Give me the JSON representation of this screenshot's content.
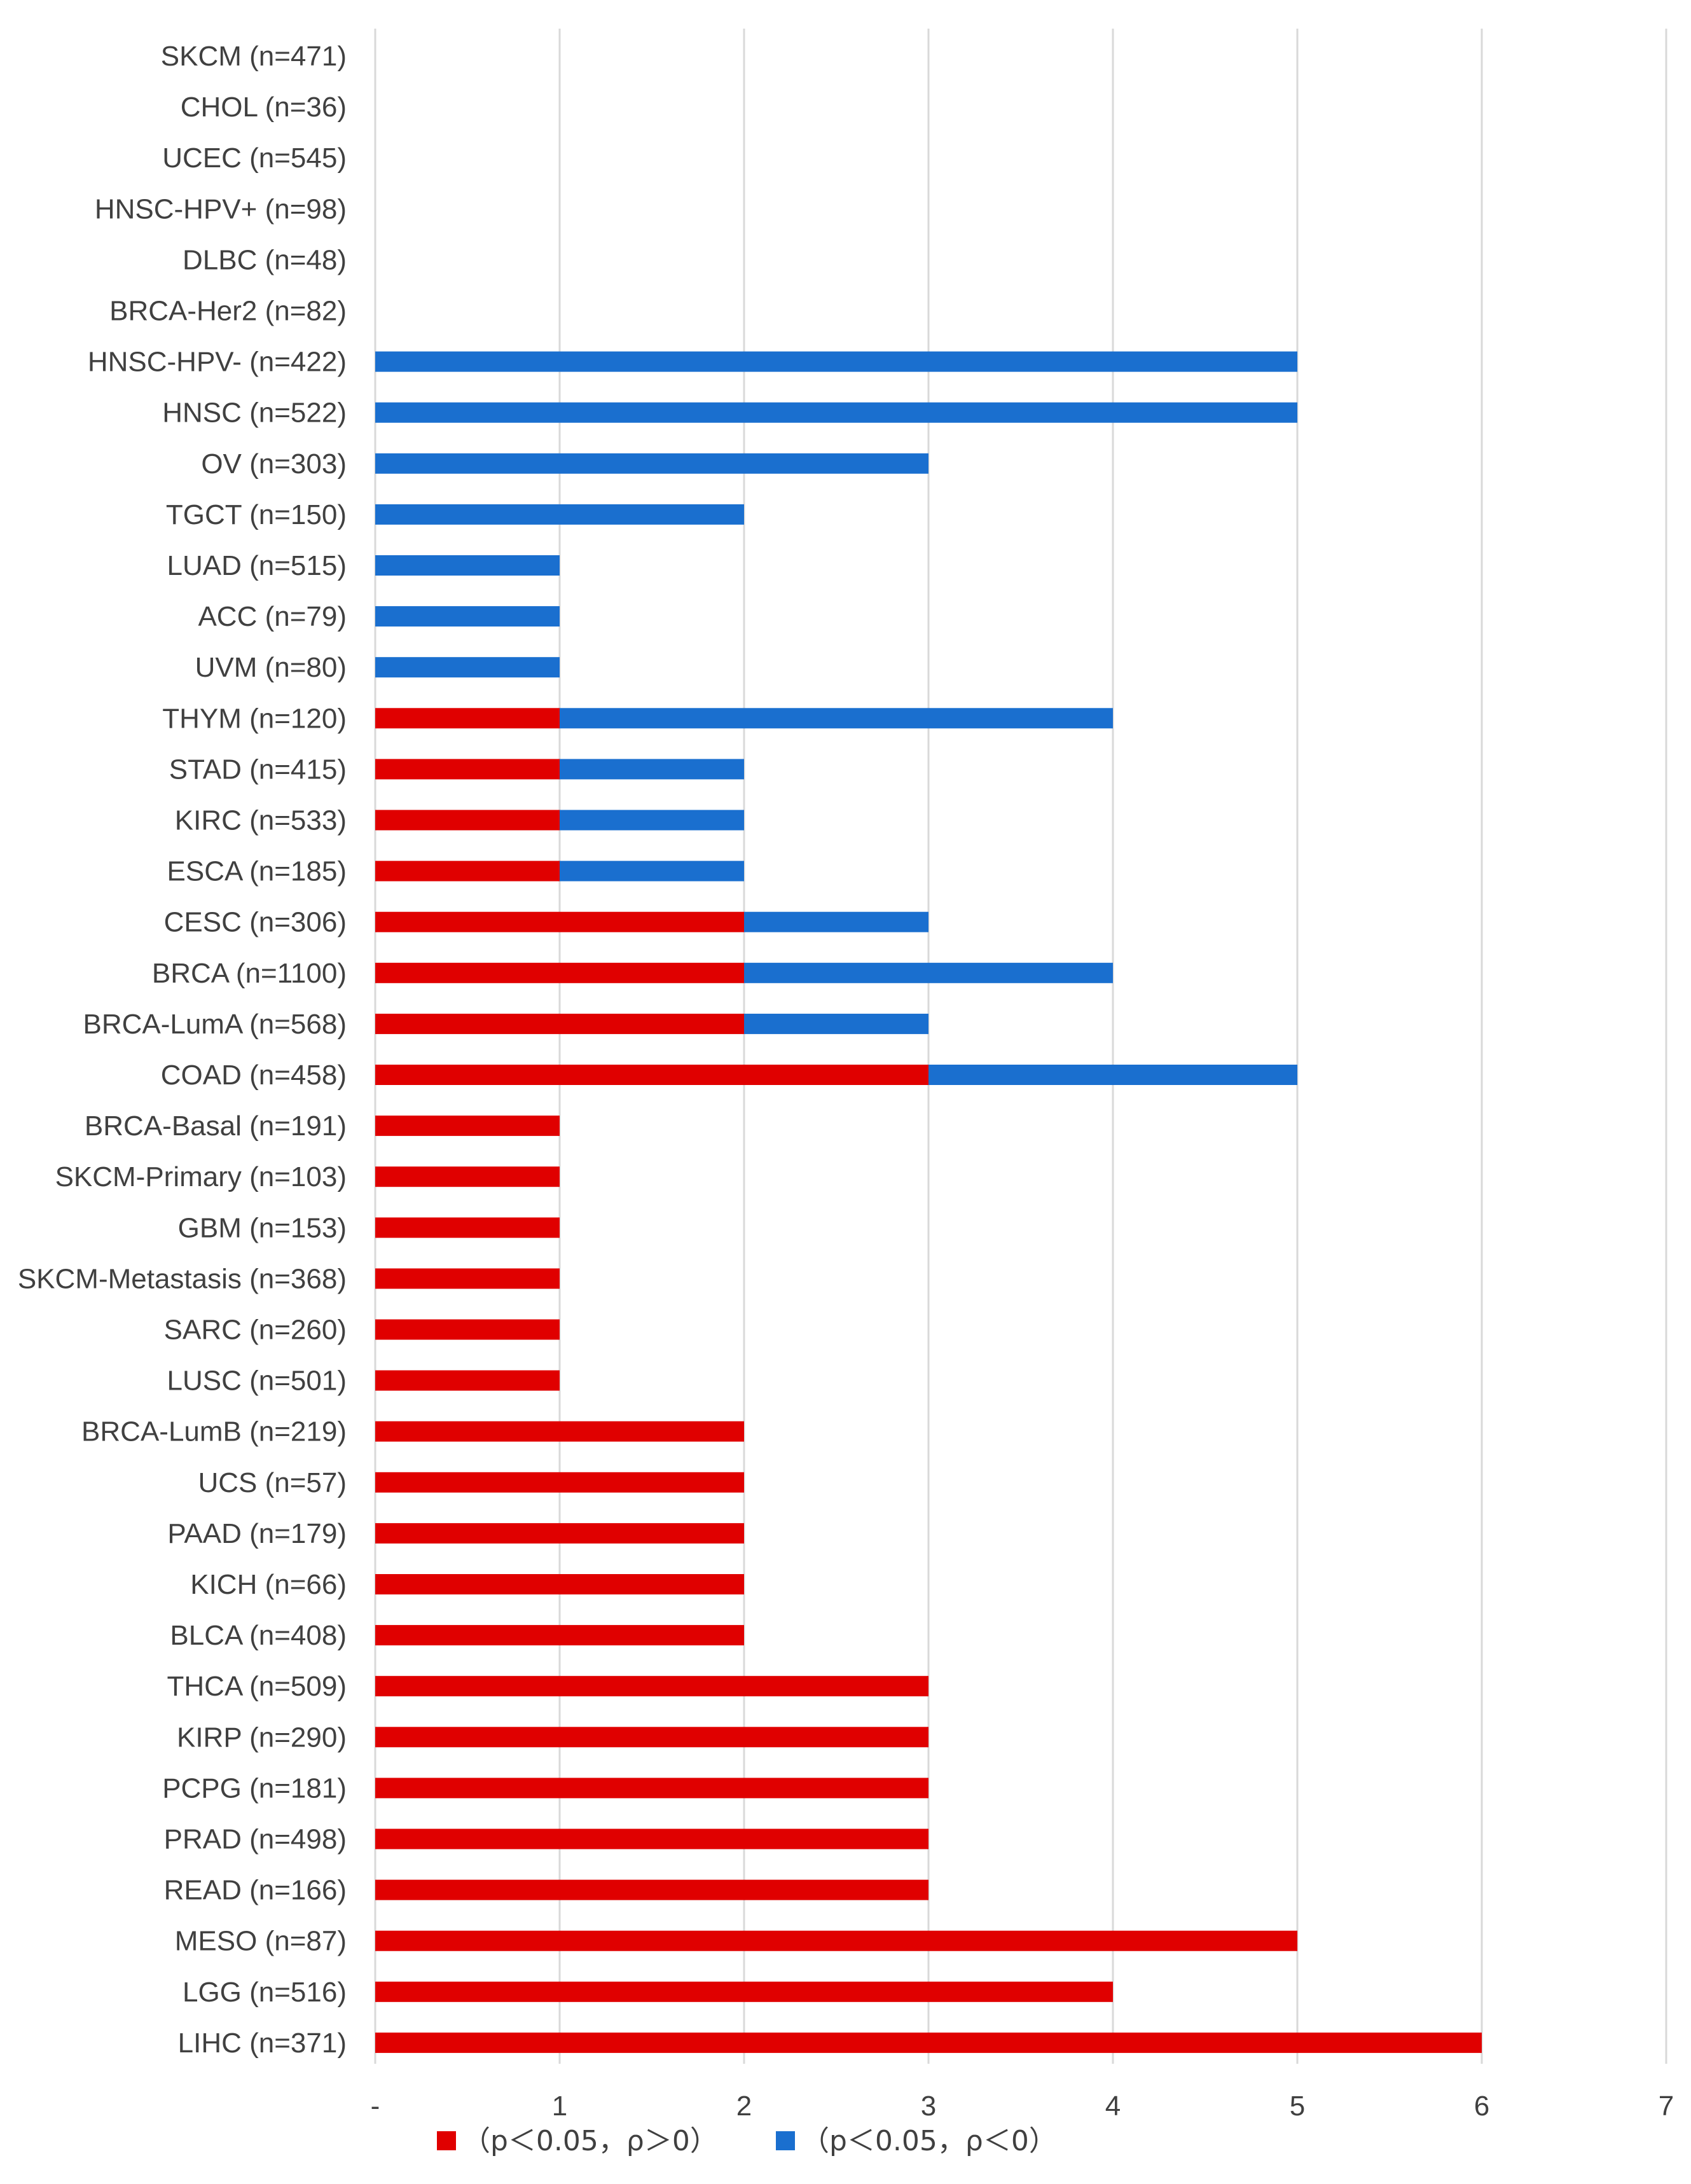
{
  "chart_data": {
    "type": "bar",
    "orientation": "horizontal",
    "stacked": true,
    "title": "",
    "xlabel": "",
    "ylabel": "",
    "xlim": [
      0,
      7
    ],
    "x_ticks": [
      "-",
      "1",
      "2",
      "3",
      "4",
      "5",
      "6",
      "7"
    ],
    "grid": true,
    "legend_position": "bottom",
    "categories": [
      "SKCM (n=471)",
      "CHOL (n=36)",
      "UCEC (n=545)",
      "HNSC-HPV+ (n=98)",
      "DLBC (n=48)",
      "BRCA-Her2 (n=82)",
      "HNSC-HPV- (n=422)",
      "HNSC (n=522)",
      "OV (n=303)",
      "TGCT (n=150)",
      "LUAD (n=515)",
      "ACC (n=79)",
      "UVM (n=80)",
      "THYM (n=120)",
      "STAD (n=415)",
      "KIRC (n=533)",
      "ESCA (n=185)",
      "CESC (n=306)",
      "BRCA (n=1100)",
      "BRCA-LumA (n=568)",
      "COAD (n=458)",
      "BRCA-Basal (n=191)",
      "SKCM-Primary (n=103)",
      "GBM (n=153)",
      "SKCM-Metastasis (n=368)",
      "SARC (n=260)",
      "LUSC (n=501)",
      "BRCA-LumB (n=219)",
      "UCS (n=57)",
      "PAAD (n=179)",
      "KICH (n=66)",
      "BLCA (n=408)",
      "THCA (n=509)",
      "KIRP (n=290)",
      "PCPG (n=181)",
      "PRAD (n=498)",
      "READ (n=166)",
      "MESO (n=87)",
      "LGG (n=516)",
      "LIHC (n=371)"
    ],
    "series": [
      {
        "name": "（p＜0.05，ρ＞0）",
        "color": "#e00000",
        "values": [
          0,
          0,
          0,
          0,
          0,
          0,
          0,
          0,
          0,
          0,
          0,
          0,
          0,
          1,
          1,
          1,
          1,
          2,
          2,
          2,
          3,
          1,
          1,
          1,
          1,
          1,
          1,
          2,
          2,
          2,
          2,
          2,
          3,
          3,
          3,
          3,
          3,
          5,
          4,
          6
        ]
      },
      {
        "name": "（p＜0.05，ρ＜0）",
        "color": "#1a6fcf",
        "values": [
          0,
          0,
          0,
          0,
          0,
          0,
          5,
          5,
          3,
          2,
          1,
          1,
          1,
          3,
          1,
          1,
          1,
          1,
          2,
          1,
          2,
          0,
          0,
          0,
          0,
          0,
          0,
          0,
          0,
          0,
          0,
          0,
          0,
          0,
          0,
          0,
          0,
          0,
          0,
          0
        ]
      }
    ]
  }
}
